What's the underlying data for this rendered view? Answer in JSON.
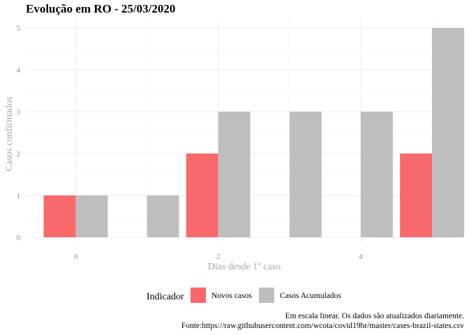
{
  "chart_data": {
    "type": "bar",
    "title": "Evolução em RO  -  25/03/2020",
    "xlabel": "Dias desde 1º caso",
    "ylabel": "Casos confirmados",
    "x": [
      0,
      1,
      2,
      3,
      4,
      5
    ],
    "x_ticks": [
      0,
      2,
      4
    ],
    "y_ticks": [
      0,
      1,
      2,
      3,
      4,
      5
    ],
    "xlim": [
      -0.7,
      5.45
    ],
    "ylim": [
      -0.1,
      5.2
    ],
    "grid": true,
    "legend_position": "bottom",
    "legend_title": "Indicador",
    "series": [
      {
        "name": "Novos casos",
        "color": "#f8696b",
        "values": [
          1,
          0,
          2,
          0,
          0,
          2
        ]
      },
      {
        "name": "Casos Acumulados",
        "color": "#bebebe",
        "values": [
          1,
          1,
          3,
          3,
          3,
          5
        ]
      }
    ],
    "caption": [
      "Em escala linear. Os dados são atualizados diariamente.",
      "Fonte:https://raw.githubusercontent.com/wcota/covid19br/master/cases-brazil-states.csv"
    ]
  }
}
